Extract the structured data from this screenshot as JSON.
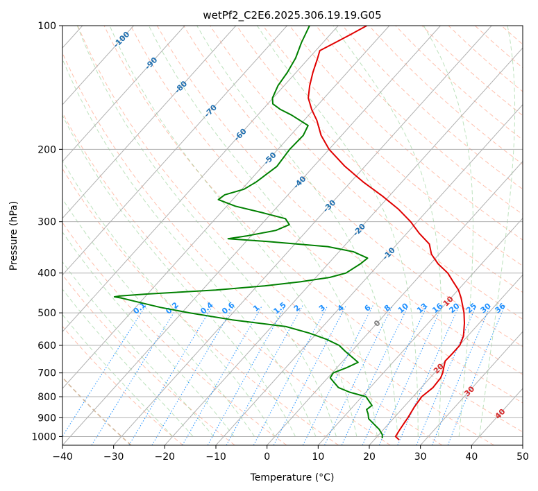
{
  "chart_data": {
    "type": "line",
    "title": "wetPf2_C2E6.2025.306.19.19.G05",
    "xlabel": "Temperature (°C)",
    "ylabel": "Pressure (hPa)",
    "xlim": [
      -40,
      50
    ],
    "ylim": [
      1050,
      100
    ],
    "y_scale": "log",
    "x_ticks": [
      -40,
      -30,
      -20,
      -10,
      0,
      10,
      20,
      30,
      40,
      50
    ],
    "y_ticks": [
      100,
      200,
      300,
      400,
      500,
      600,
      700,
      800,
      900,
      1000
    ],
    "grid": true,
    "skew": true,
    "series": [
      {
        "role": "temperature",
        "color": "#e00000",
        "points": [
          [
            1019,
            24.9
          ],
          [
            1000,
            23.6
          ],
          [
            960,
            23.2
          ],
          [
            925,
            22.9
          ],
          [
            900,
            22.7
          ],
          [
            850,
            22.1
          ],
          [
            800,
            21.7
          ],
          [
            760,
            22.3
          ],
          [
            720,
            22.1
          ],
          [
            700,
            21.6
          ],
          [
            680,
            20.9
          ],
          [
            655,
            20.0
          ],
          [
            630,
            20.1
          ],
          [
            600,
            20.1
          ],
          [
            570,
            19.2
          ],
          [
            530,
            17.1
          ],
          [
            500,
            15.2
          ],
          [
            460,
            12.0
          ],
          [
            440,
            10.1
          ],
          [
            420,
            7.6
          ],
          [
            400,
            5.0
          ],
          [
            380,
            1.5
          ],
          [
            360,
            -1.5
          ],
          [
            340,
            -3.7
          ],
          [
            320,
            -7.6
          ],
          [
            300,
            -11.3
          ],
          [
            280,
            -15.8
          ],
          [
            260,
            -21.3
          ],
          [
            240,
            -27.6
          ],
          [
            220,
            -33.9
          ],
          [
            200,
            -40.0
          ],
          [
            185,
            -44.0
          ],
          [
            170,
            -47.5
          ],
          [
            160,
            -50.4
          ],
          [
            150,
            -53.1
          ],
          [
            140,
            -55.0
          ],
          [
            130,
            -56.7
          ],
          [
            120,
            -58.3
          ],
          [
            115,
            -59.2
          ],
          [
            110,
            -57.6
          ],
          [
            105,
            -56.0
          ],
          [
            100,
            -54.4
          ]
        ]
      },
      {
        "role": "dewpoint",
        "color": "#008000",
        "points": [
          [
            1010,
            21.3
          ],
          [
            990,
            20.7
          ],
          [
            960,
            19.1
          ],
          [
            930,
            17.0
          ],
          [
            905,
            15.2
          ],
          [
            880,
            14.2
          ],
          [
            860,
            13.2
          ],
          [
            840,
            13.5
          ],
          [
            800,
            10.8
          ],
          [
            780,
            6.8
          ],
          [
            760,
            3.8
          ],
          [
            720,
            0.5
          ],
          [
            700,
            0.2
          ],
          [
            680,
            1.9
          ],
          [
            660,
            3.2
          ],
          [
            640,
            1.0
          ],
          [
            620,
            -1.3
          ],
          [
            600,
            -3.5
          ],
          [
            580,
            -7.0
          ],
          [
            560,
            -11.5
          ],
          [
            540,
            -17.2
          ],
          [
            520,
            -28.9
          ],
          [
            500,
            -38.5
          ],
          [
            485,
            -45.1
          ],
          [
            470,
            -50.7
          ],
          [
            460,
            -54.5
          ],
          [
            457,
            -56.0
          ],
          [
            455,
            -55.0
          ],
          [
            450,
            -50.2
          ],
          [
            440,
            -37.4
          ],
          [
            430,
            -28.6
          ],
          [
            420,
            -22.2
          ],
          [
            410,
            -17.3
          ],
          [
            400,
            -14.9
          ],
          [
            380,
            -13.7
          ],
          [
            368,
            -13.3
          ],
          [
            355,
            -17.2
          ],
          [
            345,
            -23.1
          ],
          [
            335,
            -36.0
          ],
          [
            330,
            -44.0
          ],
          [
            325,
            -40.9
          ],
          [
            315,
            -36.1
          ],
          [
            305,
            -34.5
          ],
          [
            295,
            -36.3
          ],
          [
            285,
            -42.0
          ],
          [
            275,
            -48.3
          ],
          [
            265,
            -52.8
          ],
          [
            258,
            -52.4
          ],
          [
            250,
            -49.6
          ],
          [
            240,
            -48.5
          ],
          [
            220,
            -47.2
          ],
          [
            200,
            -47.7
          ],
          [
            185,
            -47.5
          ],
          [
            175,
            -48.3
          ],
          [
            165,
            -53.4
          ],
          [
            160,
            -56.5
          ],
          [
            155,
            -59.0
          ],
          [
            150,
            -60.1
          ],
          [
            140,
            -61.2
          ],
          [
            130,
            -61.7
          ],
          [
            120,
            -62.6
          ],
          [
            110,
            -64.2
          ],
          [
            100,
            -65.6
          ]
        ]
      }
    ],
    "isotherm_labels": [
      "-100",
      "-90",
      "-80",
      "-70",
      "-60",
      "-50",
      "-40",
      "-30",
      "-20",
      "-10",
      "0",
      "10",
      "20",
      "30",
      "40"
    ],
    "isotherm_label_colors": {
      "cold": "#1f6fb0",
      "zero": "#808080",
      "warm": "#d62728"
    },
    "mixing_ratio_labels": [
      "0.1",
      "0.2",
      "0.4",
      "0.6",
      "1",
      "1.5",
      "2",
      "3",
      "4",
      "6",
      "8",
      "10",
      "13",
      "16",
      "20",
      "25",
      "30",
      "36"
    ],
    "mixing_ratio_color": "#1e90ff",
    "background_colors": {
      "dry_adiabat": "#ff8c69",
      "moist_adiabat": "#7cc57c",
      "dry_adiabat_dark": "#c8a582",
      "isotherm_grid": "#b0b0b0"
    }
  }
}
